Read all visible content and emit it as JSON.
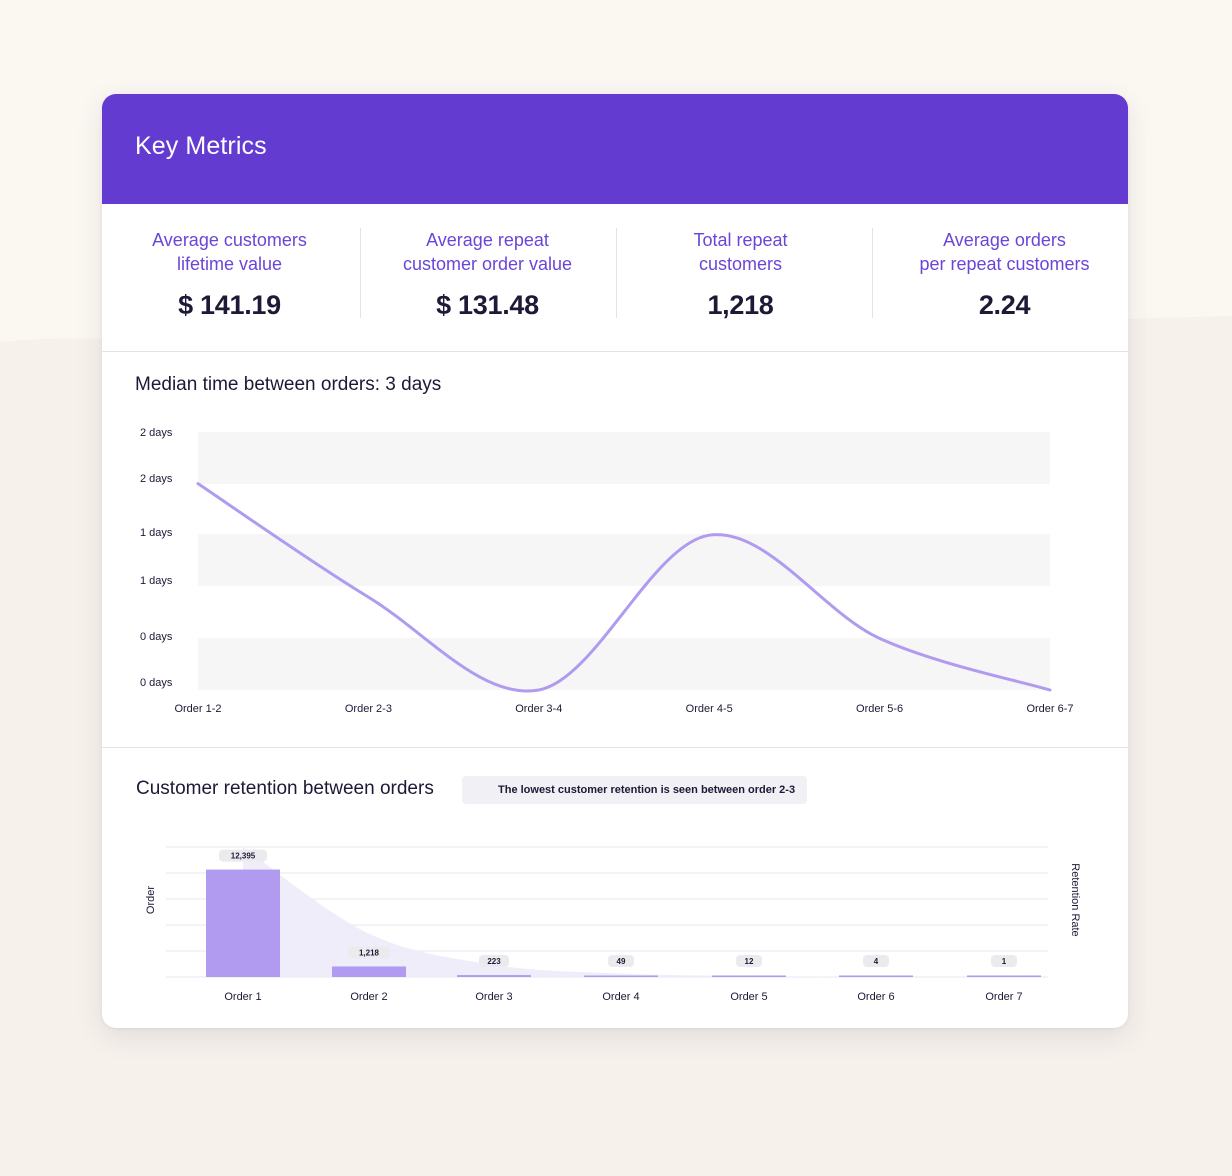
{
  "card": {
    "title": "Key Metrics"
  },
  "metrics": [
    {
      "label": "Average customers\nlifetime value",
      "value": "$ 141.19"
    },
    {
      "label": "Average repeat\ncustomer order value",
      "value": "$ 131.48"
    },
    {
      "label": "Total repeat\ncustomers",
      "value": "1,218"
    },
    {
      "label": "Average orders\nper repeat customers",
      "value": "2.24"
    }
  ],
  "median": {
    "title": "Median time between orders: 3 days"
  },
  "retention": {
    "title": "Customer retention between orders",
    "callout": "The lowest customer retention is seen between order 2-3"
  },
  "colors": {
    "header": "#643bd0",
    "accent_text": "#6a45d8",
    "line": "#b19bf0",
    "bar": "#b19bf0",
    "area": "#eeebfa",
    "band": "#f6f6f7",
    "pill": "#ebebee"
  },
  "chart_data": [
    {
      "type": "line",
      "title": "Median time between orders: 3 days",
      "categories": [
        "Order 1-2",
        "Order 2-3",
        "Order 3-4",
        "Order 4-5",
        "Order 5-6",
        "Order 6-7"
      ],
      "values": [
        2.0,
        0.9,
        0.0,
        1.5,
        0.5,
        0.0
      ],
      "y_tick_labels": [
        "0 days",
        "0 days",
        "1 days",
        "1 days",
        "2 days",
        "2 days"
      ],
      "ylim": [
        0,
        2.5
      ],
      "smooth": true
    },
    {
      "type": "bar",
      "title": "Customer retention between orders",
      "categories": [
        "Order 1",
        "Order 2",
        "Order 3",
        "Order 4",
        "Order 5",
        "Order 6",
        "Order 7"
      ],
      "values": [
        12395,
        1218,
        223,
        49,
        12,
        4,
        1
      ],
      "value_labels": [
        "12,395",
        "1,218",
        "223",
        "49",
        "12",
        "4",
        "1"
      ],
      "ylabel": "Order",
      "y2label": "Retention Rate",
      "ylim": [
        0,
        15000
      ],
      "retention_area_values": [
        15000,
        5000,
        1400,
        400,
        120,
        30,
        5
      ]
    }
  ]
}
